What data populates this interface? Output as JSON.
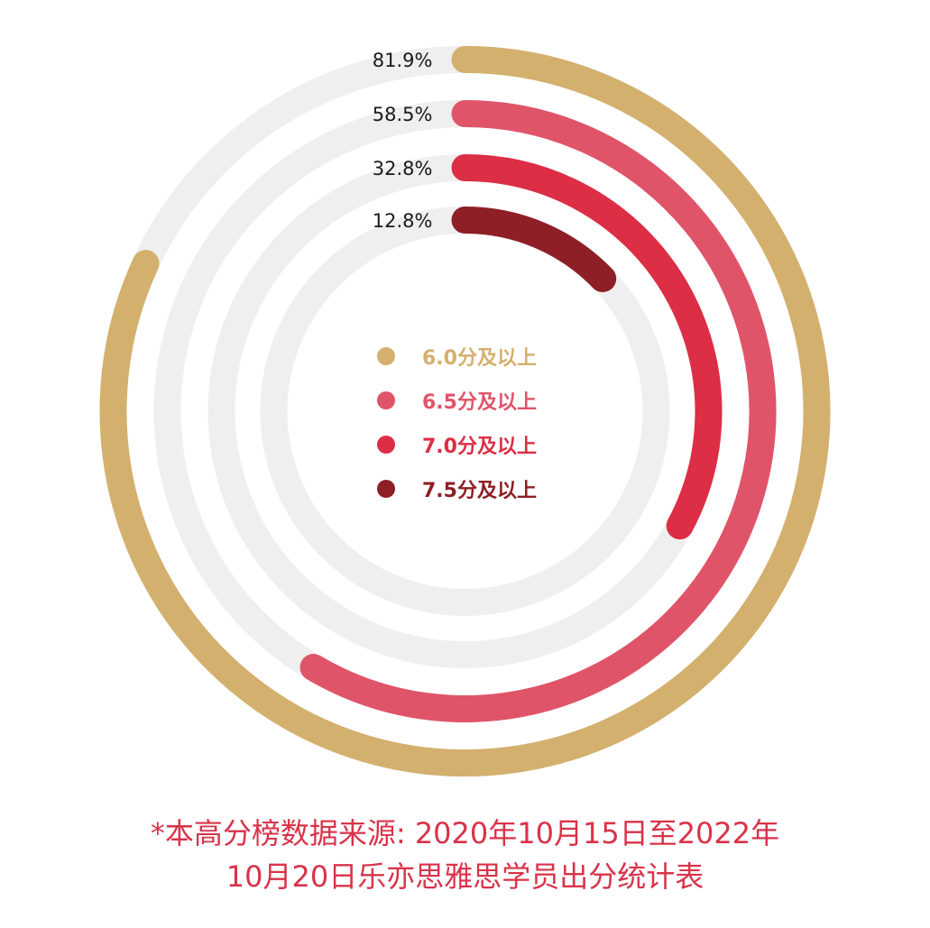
{
  "chart_data": {
    "type": "radial-bar",
    "series": [
      {
        "name": "6.0分及以上",
        "value": 81.9,
        "label": "81.9%",
        "color": "#d4b06e"
      },
      {
        "name": "6.5分及以上",
        "value": 58.5,
        "label": "58.5%",
        "color": "#e05469"
      },
      {
        "name": "7.0分及以上",
        "value": 32.8,
        "label": "32.8%",
        "color": "#dc2e45"
      },
      {
        "name": "7.5分及以上",
        "value": 12.8,
        "label": "12.8%",
        "color": "#8e1f26"
      }
    ],
    "max": 100,
    "track_color": "#efefef",
    "legend_position": "center"
  },
  "footnote": {
    "line1": "*本高分榜数据来源: 2020年10月15日至2022年",
    "line2": "10月20日乐亦思雅思学员出分统计表"
  }
}
